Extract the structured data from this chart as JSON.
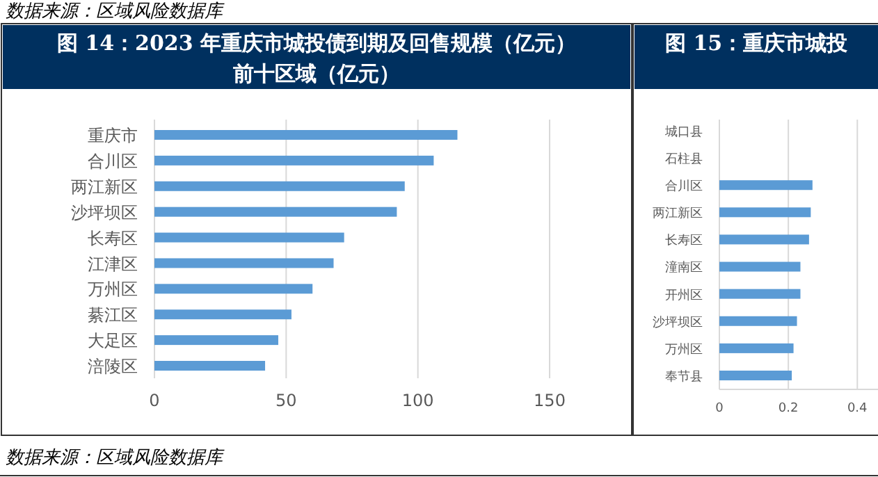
{
  "chart_data": [
    {
      "type": "bar",
      "orientation": "horizontal",
      "title": "图 14：2023 年重庆市城投债到期及回售规模（亿元）前十区域（亿元）",
      "categories": [
        "重庆市",
        "合川区",
        "两江新区",
        "沙坪坝区",
        "长寿区",
        "江津区",
        "万州区",
        "綦江区",
        "大足区",
        "涪陵区"
      ],
      "values": [
        115,
        106,
        95,
        92,
        72,
        68,
        60,
        52,
        47,
        42
      ],
      "color": "#5b9bd5",
      "xlim": [
        0,
        150
      ],
      "xticks": [
        0,
        50,
        100,
        150
      ],
      "grid": "x",
      "annotations": [
        "数据来源：区域风险数据库",
        "数据来源：区域风险数据库"
      ]
    },
    {
      "type": "bar",
      "orientation": "horizontal",
      "title": "图 15：重庆市城投",
      "categories": [
        "城口县",
        "石柱县",
        "合川区",
        "两江新区",
        "长寿区",
        "潼南区",
        "开州区",
        "沙坪坝区",
        "万州区",
        "奉节县"
      ],
      "values": [
        null,
        null,
        0.27,
        0.265,
        0.26,
        0.235,
        0.235,
        0.225,
        0.215,
        0.21
      ],
      "color": "#5b9bd5",
      "xlim": [
        0,
        0.46
      ],
      "xticks": [
        0,
        0.2,
        0.4
      ],
      "grid": "x"
    }
  ]
}
